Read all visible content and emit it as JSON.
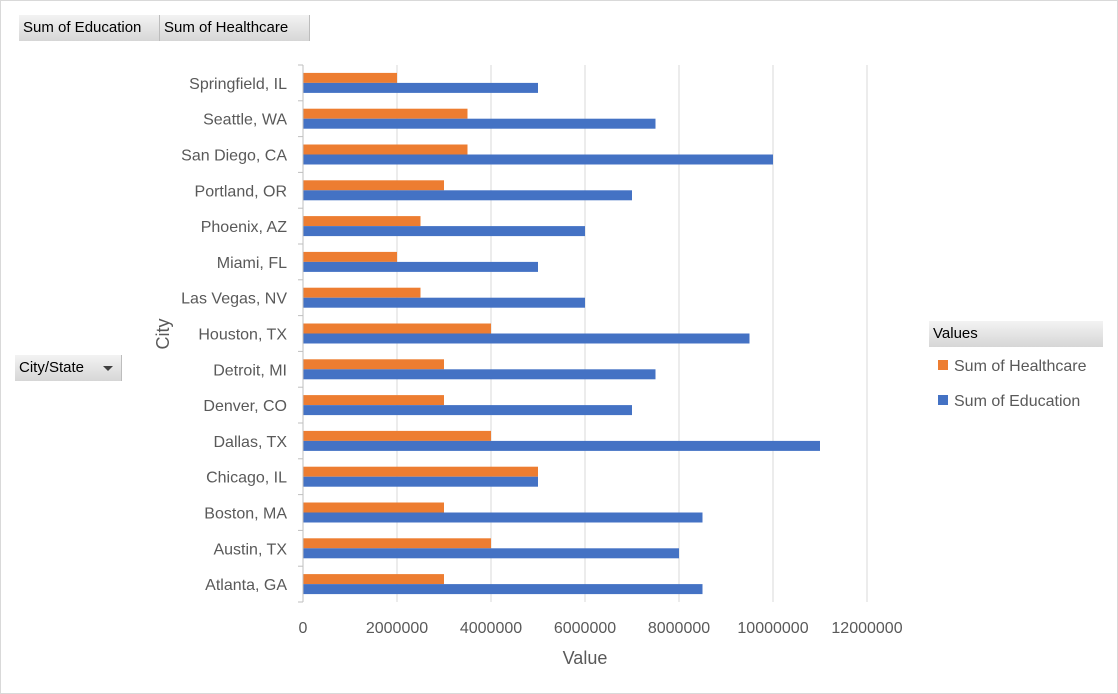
{
  "pivot": {
    "value_fields": [
      "Sum of Education",
      "Sum of Healthcare"
    ],
    "axis_field": "City/State",
    "legend_title": "Values"
  },
  "colors": {
    "education": "#4472c4",
    "healthcare": "#ed7d31",
    "gridline": "#d9d9d9"
  },
  "chart_data": {
    "type": "bar",
    "orientation": "horizontal",
    "categories": [
      "Springfield, IL",
      "Seattle, WA",
      "San Diego, CA",
      "Portland, OR",
      "Phoenix, AZ",
      "Miami, FL",
      "Las Vegas, NV",
      "Houston, TX",
      "Detroit, MI",
      "Denver, CO",
      "Dallas, TX",
      "Chicago, IL",
      "Boston, MA",
      "Austin, TX",
      "Atlanta, GA"
    ],
    "series": [
      {
        "name": "Sum of Healthcare",
        "color": "#ed7d31",
        "values": [
          2000000,
          3500000,
          3500000,
          3000000,
          2500000,
          2000000,
          2500000,
          4000000,
          3000000,
          3000000,
          4000000,
          5000000,
          3000000,
          4000000,
          3000000
        ]
      },
      {
        "name": "Sum of Education",
        "color": "#4472c4",
        "values": [
          5000000,
          7500000,
          10000000,
          7000000,
          6000000,
          5000000,
          6000000,
          9500000,
          7500000,
          7000000,
          11000000,
          5000000,
          8500000,
          8000000,
          8500000
        ]
      }
    ],
    "xlabel": "Value",
    "ylabel": "City",
    "xlim": [
      0,
      12000000
    ],
    "xticks": [
      0,
      2000000,
      4000000,
      6000000,
      8000000,
      10000000,
      12000000
    ],
    "xtick_labels": [
      "0",
      "2000000",
      "4000000",
      "6000000",
      "8000000",
      "10000000",
      "12000000"
    ],
    "grid": "vertical",
    "legend": "right"
  }
}
